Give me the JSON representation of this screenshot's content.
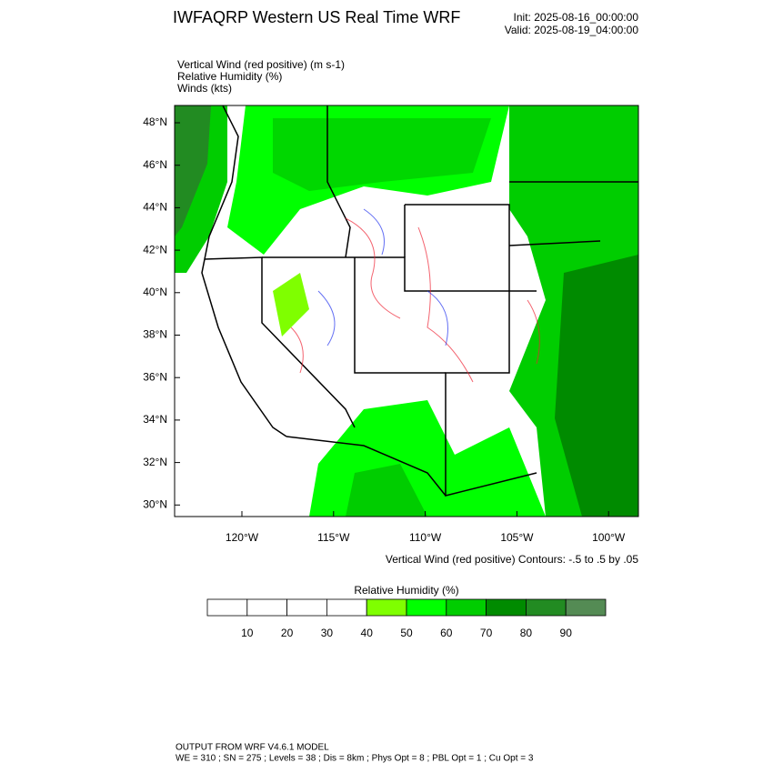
{
  "header": {
    "title": "IWFAQRP Western US Real Time WRF",
    "init": "Init: 2025-08-16_00:00:00",
    "valid": "Valid: 2025-08-19_04:00:00"
  },
  "fields": [
    "Vertical Wind (red positive)   (m s-1)",
    "Relative Humidity   (%)",
    "Winds   (kts)"
  ],
  "map": {
    "lat_labels": [
      "48°N",
      "46°N",
      "44°N",
      "42°N",
      "40°N",
      "38°N",
      "36°N",
      "34°N",
      "32°N",
      "30°N"
    ],
    "lon_labels": [
      "120°W",
      "115°W",
      "110°W",
      "105°W",
      "100°W"
    ],
    "contour_note": "Vertical Wind (red positive) Contours: -.5 to .5 by .05"
  },
  "colorbar": {
    "title": "Relative Humidity  (%)",
    "colors": [
      "#ffffff",
      "#ffffff",
      "#ffffff",
      "#ffffff",
      "#7fff00",
      "#00ff00",
      "#00cd00",
      "#008b00",
      "#228b22",
      "#548b54"
    ],
    "labels": [
      "10",
      "20",
      "30",
      "40",
      "50",
      "60",
      "70",
      "80",
      "90"
    ]
  },
  "footer": {
    "lines": [
      "OUTPUT FROM WRF V4.6.1 MODEL",
      "WE = 310 ; SN = 275 ; Levels = 38 ; Dis = 8km ; Phys Opt = 8 ; PBL Opt = 1 ; Cu Opt = 3"
    ]
  }
}
